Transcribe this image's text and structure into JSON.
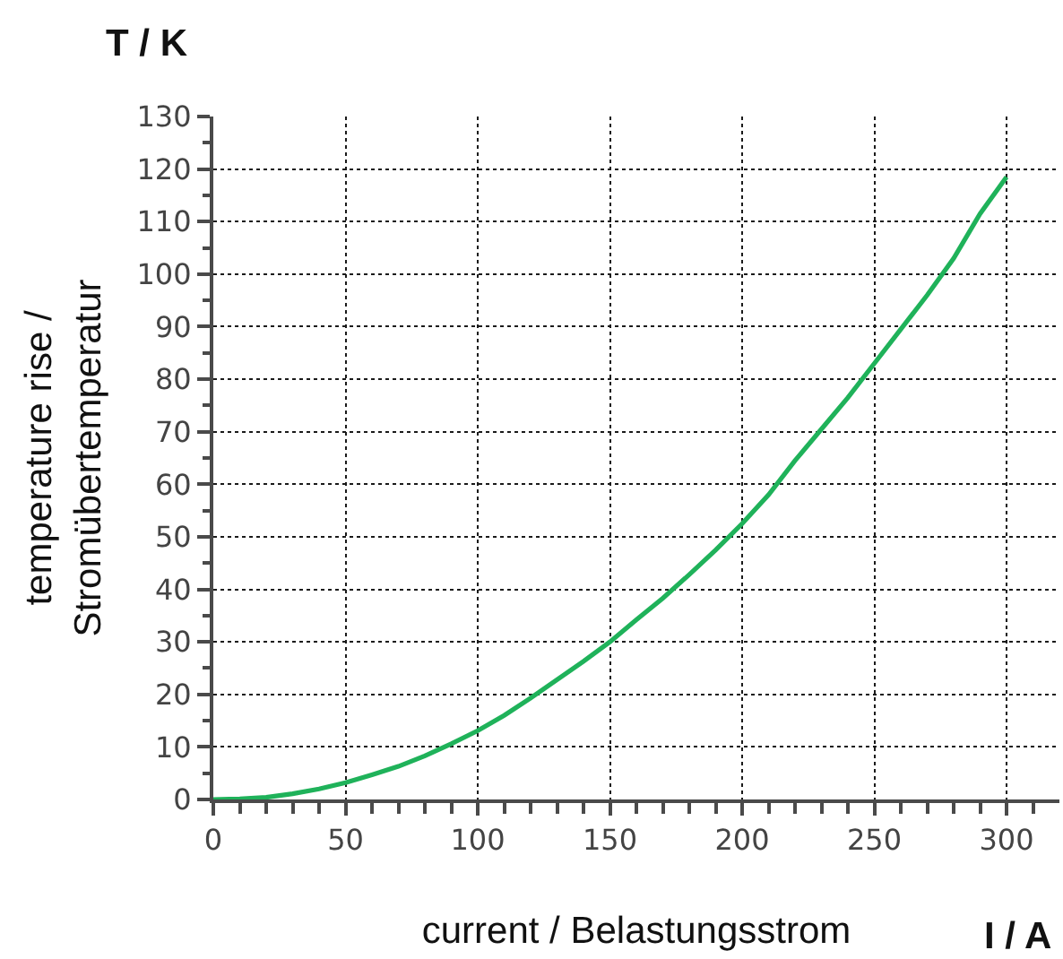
{
  "chart_data": {
    "type": "line",
    "xlabel": "current / Belastungsstrom",
    "ylabel": "temperature rise /\nStromübertemperatur",
    "annotations": [
      "T / K",
      "I / A"
    ],
    "x": [
      0,
      10,
      20,
      30,
      40,
      50,
      60,
      70,
      80,
      90,
      100,
      110,
      120,
      130,
      140,
      150,
      160,
      170,
      180,
      190,
      200,
      210,
      220,
      230,
      240,
      250,
      260,
      270,
      280,
      290,
      300
    ],
    "series": [
      {
        "color": "#1fb25a",
        "values": [
          0,
          0.1,
          0.4,
          1.1,
          2,
          3.2,
          4.7,
          6.3,
          8.3,
          10.6,
          13.1,
          16,
          19.3,
          22.8,
          26.3,
          30,
          34.2,
          38.3,
          42.8,
          47.5,
          52.5,
          58,
          64.5,
          70.5,
          76.5,
          83,
          89.5,
          96,
          103,
          111.5,
          118.5
        ]
      }
    ],
    "xlim": [
      0,
      320
    ],
    "xticks": [
      0,
      {
        "value": 10,
        "label": null
      },
      {
        "value": 20,
        "label": null
      },
      {
        "value": 30,
        "label": null
      },
      {
        "value": 40,
        "label": null
      },
      50,
      {
        "value": 60,
        "label": null
      },
      {
        "value": 70,
        "label": null
      },
      {
        "value": 80,
        "label": null
      },
      {
        "value": 90,
        "label": null
      },
      100,
      {
        "value": 110,
        "label": null
      },
      {
        "value": 120,
        "label": null
      },
      {
        "value": 130,
        "label": null
      },
      {
        "value": 140,
        "label": null
      },
      150,
      {
        "value": 160,
        "label": null
      },
      {
        "value": 170,
        "label": null
      },
      {
        "value": 180,
        "label": null
      },
      {
        "value": 190,
        "label": null
      },
      200,
      {
        "value": 210,
        "label": null
      },
      {
        "value": 220,
        "label": null
      },
      {
        "value": 230,
        "label": null
      },
      {
        "value": 240,
        "label": null
      },
      250,
      {
        "value": 260,
        "label": null
      },
      {
        "value": 270,
        "label": null
      },
      {
        "value": 280,
        "label": null
      },
      {
        "value": 290,
        "label": null
      },
      300,
      {
        "value": 310,
        "label": null
      }
    ],
    "ylim": [
      0,
      130
    ],
    "yticks": [
      0,
      {
        "value": 5,
        "label": null
      },
      10,
      {
        "value": 15,
        "label": null
      },
      20,
      {
        "value": 25,
        "label": null
      },
      30,
      {
        "value": 35,
        "label": null
      },
      40,
      {
        "value": 45,
        "label": null
      },
      50,
      {
        "value": 55,
        "label": null
      },
      60,
      {
        "value": 65,
        "label": null
      },
      70,
      {
        "value": 75,
        "label": null
      },
      80,
      {
        "value": 85,
        "label": null
      },
      90,
      {
        "value": 95,
        "label": null
      },
      100,
      {
        "value": 105,
        "label": null
      },
      110,
      {
        "value": 115,
        "label": null
      },
      120,
      {
        "value": 125,
        "label": null
      },
      130
    ],
    "grid": true,
    "marker": "none",
    "line_style": "solid"
  }
}
